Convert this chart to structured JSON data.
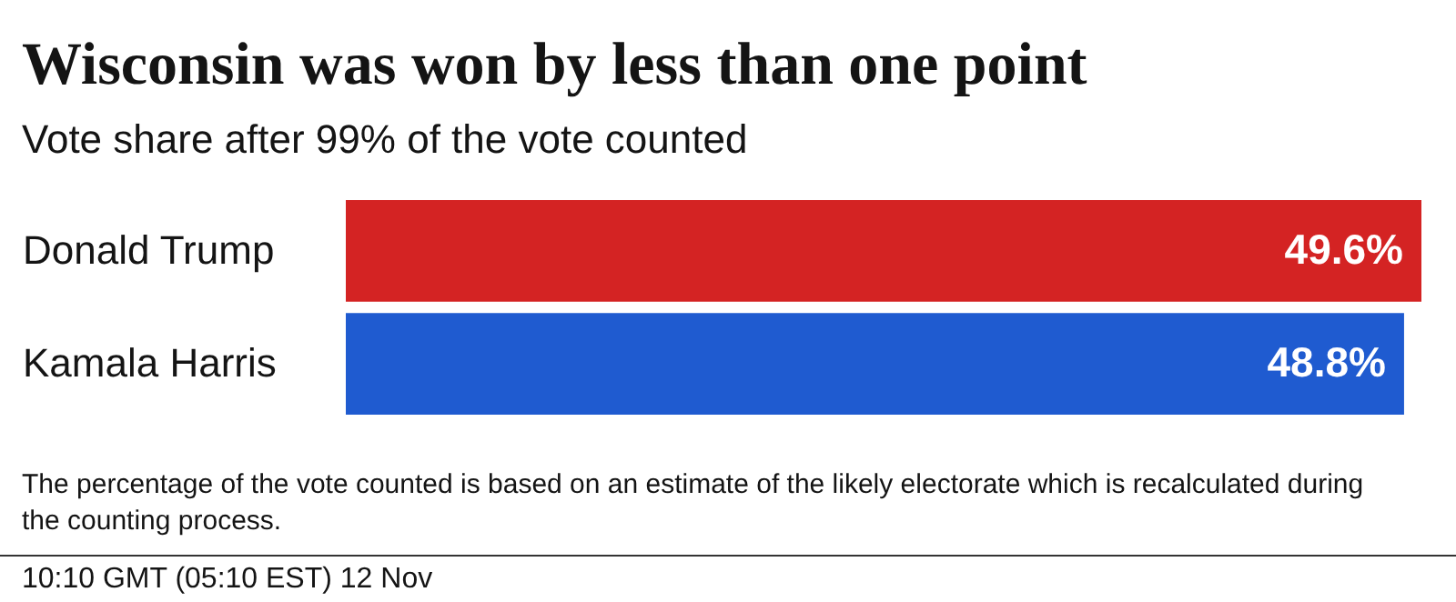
{
  "chart_data": {
    "type": "bar",
    "orientation": "horizontal",
    "title": "Wisconsin was won by less than one point",
    "subtitle": "Vote share after 99% of the vote counted",
    "categories": [
      "Donald Trump",
      "Kamala Harris"
    ],
    "values": [
      49.6,
      48.8
    ],
    "colors": [
      "#d42323",
      "#1f5bd0"
    ],
    "value_labels": [
      "49.6%",
      "48.8%"
    ],
    "tick_labels": "y",
    "annotations": [
      "The percentage of the vote counted is based on an estimate of the likely electorate which is recalculated during the counting process.",
      "10:10 GMT (05:10 EST) 12 Nov"
    ]
  }
}
